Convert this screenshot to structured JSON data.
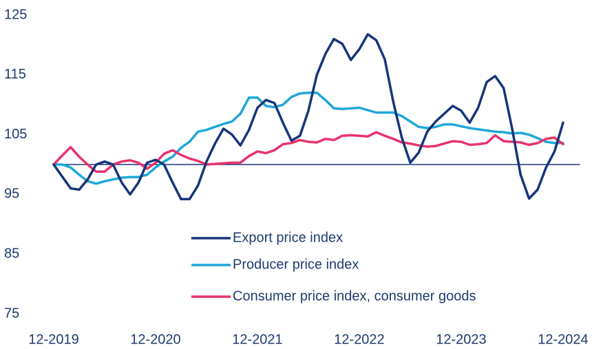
{
  "chart_data": {
    "type": "line",
    "categories": [
      "12-2019",
      null,
      null,
      null,
      null,
      null,
      null,
      null,
      null,
      null,
      null,
      null,
      "12-2020",
      null,
      null,
      null,
      null,
      null,
      null,
      null,
      null,
      null,
      null,
      null,
      "12-2021",
      null,
      null,
      null,
      null,
      null,
      null,
      null,
      null,
      null,
      null,
      null,
      "12-2022",
      null,
      null,
      null,
      null,
      null,
      null,
      null,
      null,
      null,
      null,
      null,
      "12-2023",
      null,
      null,
      null,
      null,
      null,
      null,
      null,
      null,
      null,
      null,
      null,
      "12-2024"
    ],
    "series": [
      {
        "name": "Export price index",
        "color": "#16357a",
        "values": [
          100,
          98,
          96,
          95.8,
          97.5,
          100,
          100.5,
          100,
          97,
          95,
          97,
          100.3,
          100.8,
          100,
          97,
          94.2,
          94.2,
          96.5,
          100.5,
          103.5,
          106,
          105,
          103.2,
          105.8,
          109.5,
          110.8,
          110.3,
          107,
          104,
          104.8,
          109,
          115,
          118.5,
          121,
          120.2,
          117.5,
          119.3,
          121.8,
          120.8,
          117.6,
          110.5,
          104.5,
          100.3,
          102,
          105.5,
          107.2,
          108.5,
          109.8,
          109,
          107,
          109.5,
          113.8,
          114.8,
          112.8,
          106,
          98.3,
          94.3,
          95.8,
          99.5,
          102.2,
          107
        ]
      },
      {
        "name": "Producer price index",
        "color": "#1ea7d8",
        "values": [
          100,
          100,
          99.5,
          98.3,
          97.2,
          96.8,
          97.2,
          97.5,
          97.8,
          97.9,
          97.9,
          98.3,
          99.5,
          100.5,
          101.3,
          102.8,
          103.8,
          105.5,
          105.8,
          106.3,
          106.8,
          107.2,
          108.5,
          111.2,
          111.2,
          109.8,
          109.6,
          110,
          111.3,
          111.9,
          112,
          112,
          110.8,
          109.4,
          109.3,
          109.4,
          109.5,
          109.1,
          108.7,
          108.7,
          108.7,
          108.1,
          107.2,
          106.3,
          106.1,
          106.3,
          106.7,
          106.7,
          106.4,
          106.1,
          105.9,
          105.7,
          105.5,
          105.4,
          105.2,
          105.3,
          105,
          104.4,
          103.8,
          103.6,
          103.6
        ]
      },
      {
        "name": "Consumer price index, consumer goods",
        "color": "#e8336b",
        "values": [
          100,
          101.5,
          102.9,
          101.3,
          100,
          98.8,
          98.8,
          100,
          100.5,
          100.7,
          100.3,
          99.3,
          100.3,
          101.8,
          102.4,
          101.6,
          101,
          100.6,
          100,
          100.1,
          100.2,
          100.3,
          100.3,
          101.4,
          102.2,
          101.9,
          102.4,
          103.4,
          103.6,
          104.1,
          103.8,
          103.7,
          104.3,
          104.1,
          104.8,
          104.9,
          104.8,
          104.7,
          105.4,
          104.8,
          104.3,
          103.7,
          103.5,
          103.2,
          103,
          103.1,
          103.5,
          103.9,
          103.8,
          103.3,
          103.4,
          103.6,
          104.9,
          103.9,
          103.8,
          103.7,
          103.3,
          103.6,
          104.3,
          104.5,
          103.4
        ]
      }
    ],
    "reference_line": 100,
    "ylim": [
      75,
      125
    ],
    "yticks": [
      75,
      85,
      95,
      105,
      115,
      125
    ],
    "grid": false,
    "legend": "lower center"
  }
}
